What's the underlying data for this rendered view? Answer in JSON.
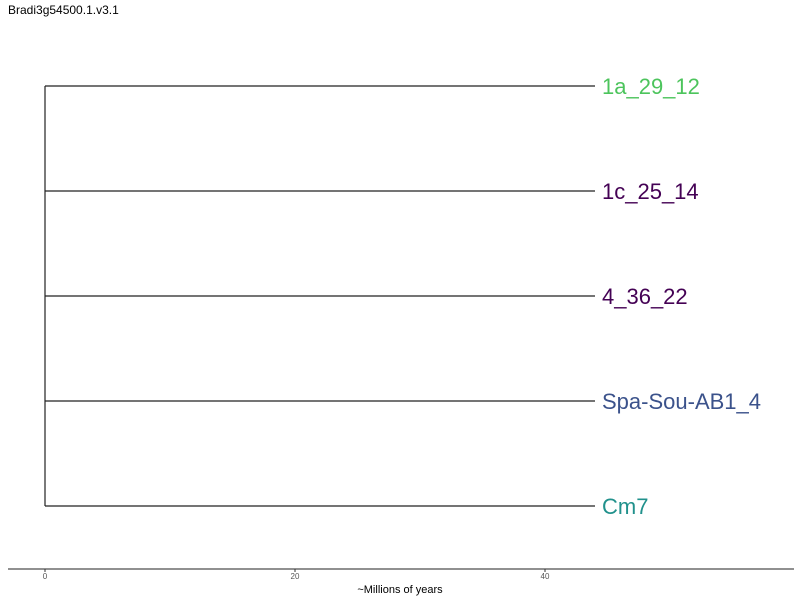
{
  "title": "Bradi3g54500.1.v3.1",
  "chart_data": {
    "type": "tree",
    "tips": [
      {
        "label": "1a_29_12",
        "branch_length": 44,
        "color": "#4cc45c"
      },
      {
        "label": "1c_25_14",
        "branch_length": 44,
        "color": "#440154"
      },
      {
        "label": "4_36_22",
        "branch_length": 44,
        "color": "#440154"
      },
      {
        "label": "Spa-Sou-AB1_4",
        "branch_length": 44,
        "color": "#3b528b"
      },
      {
        "label": "Cm7",
        "branch_length": 44,
        "color": "#21918c"
      }
    ],
    "xlim": [
      0,
      60
    ],
    "x_ticks": [
      0,
      20,
      40
    ],
    "x_tick_labels": [
      "0",
      "20",
      "40"
    ],
    "xlabel": "~Millions of years"
  }
}
